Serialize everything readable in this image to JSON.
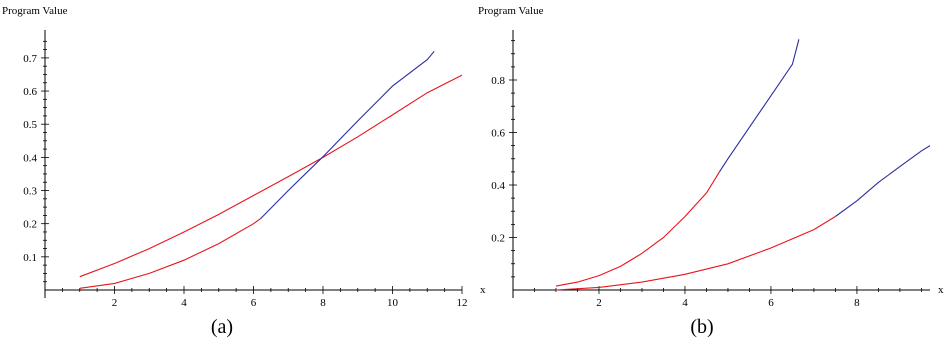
{
  "colors": {
    "series_red": "#e8151b",
    "series_blue": "#2b2f9c",
    "axis": "#000000"
  },
  "chart_data": [
    {
      "type": "line",
      "caption": "(a)",
      "ylabel": "Program Value",
      "xlabel": "x",
      "xlim": [
        0,
        12
      ],
      "ylim": [
        0,
        0.76
      ],
      "x_ticks_major": [
        2,
        4,
        6,
        8,
        10,
        12
      ],
      "y_ticks_major": [
        0.1,
        0.2,
        0.3,
        0.4,
        0.5,
        0.6,
        0.7
      ],
      "series": [
        {
          "color": "#e8151b",
          "points": [
            [
              1,
              0.04
            ],
            [
              2,
              0.08
            ],
            [
              3,
              0.125
            ],
            [
              4,
              0.175
            ],
            [
              5,
              0.228
            ],
            [
              6,
              0.285
            ],
            [
              7,
              0.342
            ],
            [
              8,
              0.4
            ],
            [
              9,
              0.462
            ],
            [
              10,
              0.528
            ],
            [
              11,
              0.595
            ],
            [
              12,
              0.648
            ]
          ]
        },
        {
          "color": "#e8151b",
          "points": [
            [
              1,
              0.005
            ],
            [
              2,
              0.02
            ],
            [
              3,
              0.05
            ],
            [
              4,
              0.09
            ],
            [
              5,
              0.14
            ],
            [
              6,
              0.2
            ],
            [
              6.2,
              0.215
            ]
          ]
        },
        {
          "color": "#2b2f9c",
          "points": [
            [
              6.2,
              0.215
            ],
            [
              7,
              0.3
            ],
            [
              8,
              0.402
            ],
            [
              9,
              0.51
            ],
            [
              10,
              0.615
            ],
            [
              11,
              0.695
            ],
            [
              11.2,
              0.72
            ]
          ]
        }
      ]
    },
    {
      "type": "line",
      "caption": "(b)",
      "ylabel": "Program Value",
      "xlabel": "x",
      "xlim": [
        0,
        9.7
      ],
      "ylim": [
        0,
        0.96
      ],
      "x_ticks_major": [
        2,
        4,
        6,
        8
      ],
      "y_ticks_major": [
        0.2,
        0.4,
        0.6,
        0.8
      ],
      "series": [
        {
          "color": "#e8151b",
          "points": [
            [
              1,
              0.015
            ],
            [
              1.5,
              0.03
            ],
            [
              2,
              0.055
            ],
            [
              2.5,
              0.09
            ],
            [
              3,
              0.14
            ],
            [
              3.5,
              0.2
            ],
            [
              4,
              0.28
            ],
            [
              4.5,
              0.37
            ],
            [
              4.8,
              0.45
            ]
          ]
        },
        {
          "color": "#2b2f9c",
          "points": [
            [
              4.8,
              0.45
            ],
            [
              5,
              0.5
            ],
            [
              5.5,
              0.62
            ],
            [
              6,
              0.74
            ],
            [
              6.5,
              0.86
            ],
            [
              6.65,
              0.955
            ]
          ]
        },
        {
          "color": "#e8151b",
          "points": [
            [
              1,
              0.0
            ],
            [
              2,
              0.01
            ],
            [
              3,
              0.03
            ],
            [
              4,
              0.06
            ],
            [
              5,
              0.1
            ],
            [
              6,
              0.16
            ],
            [
              7,
              0.23
            ],
            [
              7.5,
              0.28
            ]
          ]
        },
        {
          "color": "#2b2f9c",
          "points": [
            [
              7.5,
              0.28
            ],
            [
              8,
              0.34
            ],
            [
              8.5,
              0.41
            ],
            [
              9,
              0.47
            ],
            [
              9.5,
              0.53
            ],
            [
              9.7,
              0.55
            ]
          ]
        }
      ]
    }
  ]
}
